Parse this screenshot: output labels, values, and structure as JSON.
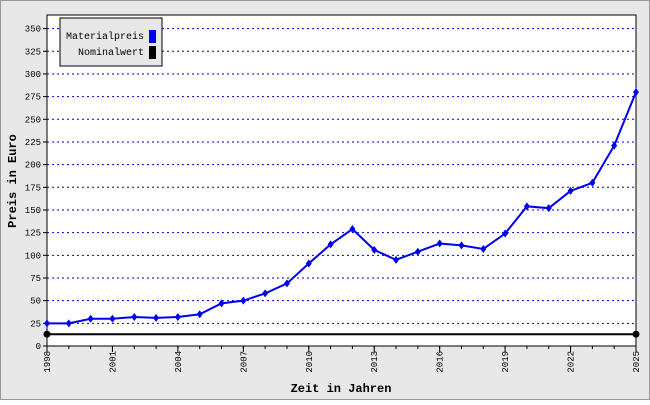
{
  "chart_data": {
    "type": "line",
    "x_label": "Zeit in Jahren",
    "y_label": "Preis in Euro",
    "x": [
      1998,
      1999,
      2000,
      2001,
      2002,
      2003,
      2004,
      2005,
      2006,
      2007,
      2008,
      2009,
      2010,
      2011,
      2012,
      2013,
      2014,
      2015,
      2016,
      2017,
      2018,
      2019,
      2020,
      2021,
      2022,
      2023,
      2024,
      2025
    ],
    "series": [
      {
        "name": "Materialpreis",
        "color": "#0000ee",
        "values": [
          25,
          25,
          30,
          30,
          32,
          31,
          32,
          35,
          47,
          50,
          58,
          69,
          91,
          112,
          129,
          106,
          95,
          104,
          113,
          111,
          107,
          124,
          154,
          152,
          171,
          180,
          221,
          280
        ]
      },
      {
        "name": "Nominalwert",
        "color": "#000000",
        "x": [
          1998,
          2025
        ],
        "values": [
          13,
          13
        ]
      }
    ],
    "xlim": [
      1998,
      2025
    ],
    "xticks": [
      1998,
      2001,
      2004,
      2007,
      2010,
      2013,
      2016,
      2019,
      2022,
      2025
    ],
    "ylim": [
      0,
      365
    ],
    "yticks": [
      0,
      25,
      50,
      75,
      100,
      125,
      150,
      175,
      200,
      225,
      250,
      275,
      300,
      325,
      350
    ],
    "grid": true,
    "legend": "top-left"
  }
}
